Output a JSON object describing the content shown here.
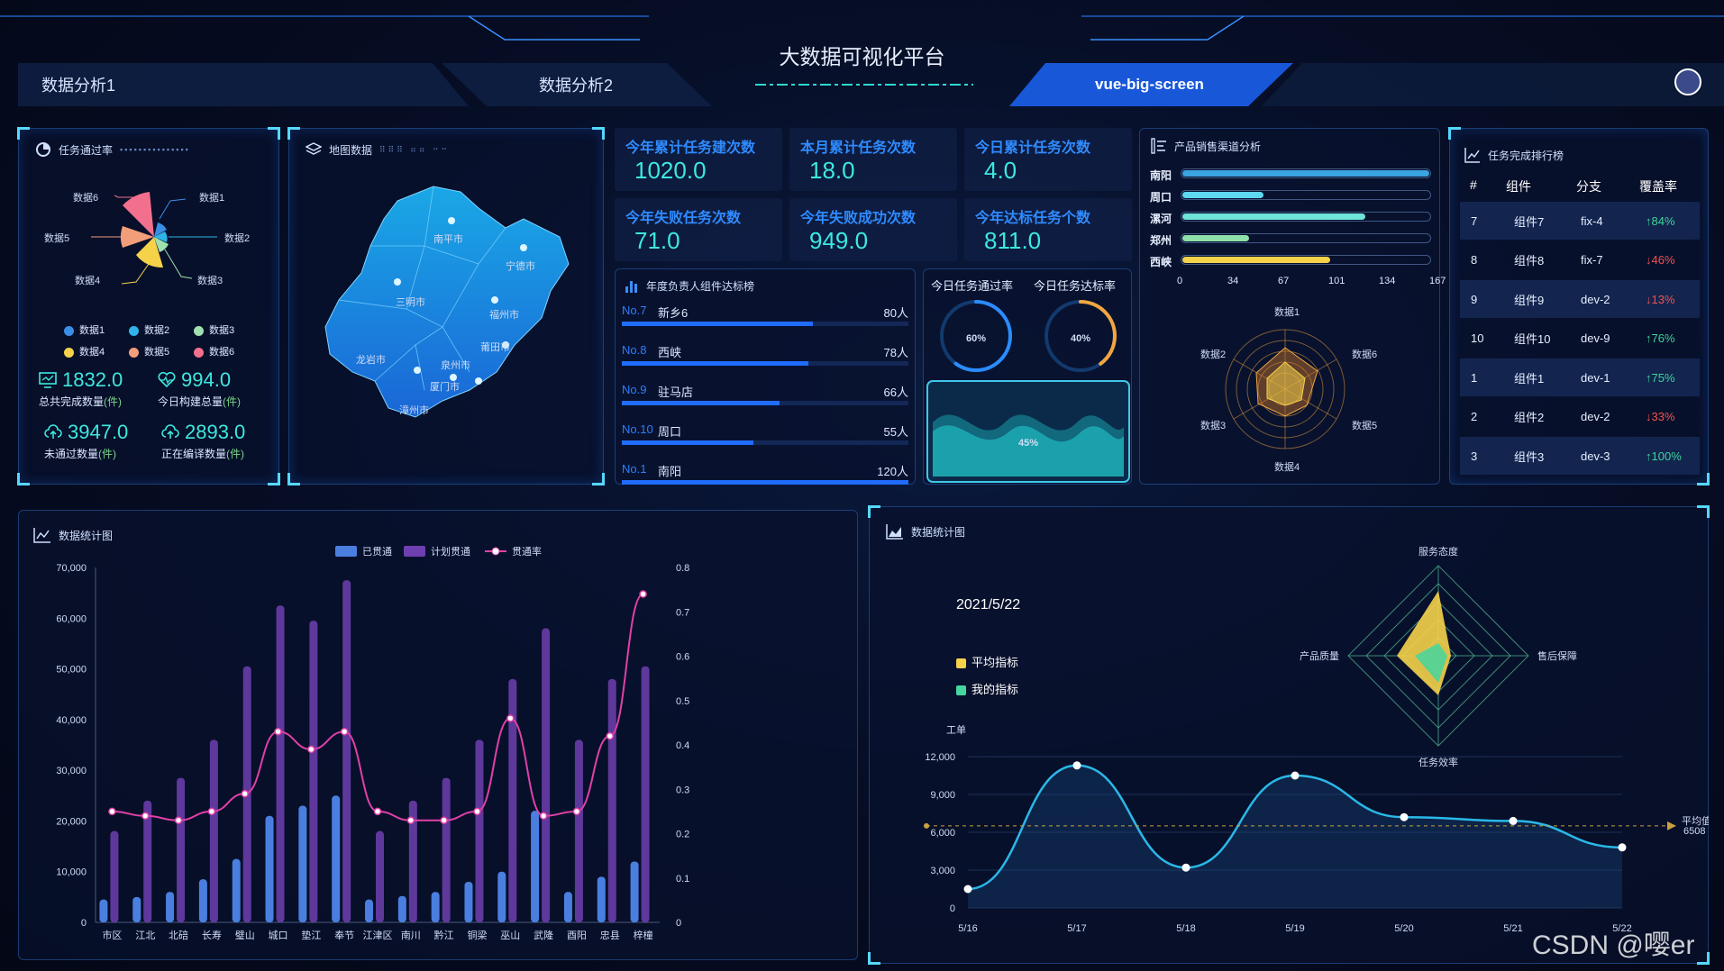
{
  "header": {
    "title": "大数据可视化平台",
    "tabs": [
      "数据分析1",
      "数据分析2",
      "vue-big-screen"
    ]
  },
  "pass_rate_panel": {
    "title": "任务通过率",
    "labels": [
      "数据1",
      "数据2",
      "数据3",
      "数据4",
      "数据5",
      "数据6"
    ],
    "legend": [
      {
        "label": "数据1",
        "color": "#3a8ee6"
      },
      {
        "label": "数据2",
        "color": "#2fb3e8"
      },
      {
        "label": "数据3",
        "color": "#9fe0b0"
      },
      {
        "label": "数据4",
        "color": "#f5d24a"
      },
      {
        "label": "数据5",
        "color": "#f29e7a"
      },
      {
        "label": "数据6",
        "color": "#f2708e"
      }
    ],
    "stats": [
      {
        "value": "1832.0",
        "label": "总共完成数量",
        "unit": "(件)"
      },
      {
        "value": "994.0",
        "label": "今日构建总量",
        "unit": "(件)"
      },
      {
        "value": "3947.0",
        "label": "未通过数量",
        "unit": "(件)"
      },
      {
        "value": "2893.0",
        "label": "正在编译数量",
        "unit": "(件)"
      }
    ]
  },
  "map_panel": {
    "title": "地图数据",
    "cities": [
      "南平市",
      "宁德市",
      "三明市",
      "福州市",
      "莆田市",
      "龙岩市",
      "泉州市",
      "厦门市",
      "漳州市"
    ]
  },
  "stats": [
    {
      "label": "今年累计任务建次数",
      "value": "1020.0"
    },
    {
      "label": "本月累计任务次数",
      "value": "18.0"
    },
    {
      "label": "今日累计任务次数",
      "value": "4.0"
    },
    {
      "label": "今年失败任务次数",
      "value": "71.0"
    },
    {
      "label": "今年失败成功次数",
      "value": "949.0"
    },
    {
      "label": "今年达标任务个数",
      "value": "811.0"
    }
  ],
  "ranking": {
    "title": "年度负责人组件达标榜",
    "items": [
      {
        "no": "No.7",
        "name": "新乡6",
        "count": "80人",
        "value": 80
      },
      {
        "no": "No.8",
        "name": "西峡",
        "count": "78人",
        "value": 78
      },
      {
        "no": "No.9",
        "name": "驻马店",
        "count": "66人",
        "value": 66
      },
      {
        "no": "No.10",
        "name": "周口",
        "count": "55人",
        "value": 55
      },
      {
        "no": "No.1",
        "name": "南阳",
        "count": "120人",
        "value": 120
      }
    ],
    "max": 120
  },
  "today": {
    "pass_title": "今日任务通过率",
    "reach_title": "今日任务达标率",
    "pass_value": "60%",
    "pass_pct": 0.6,
    "reach_value": "40%",
    "reach_pct": 0.4,
    "wave_value": "45%",
    "wave_pct": 0.45
  },
  "channels": {
    "title": "产品销售渠道分析",
    "items": [
      {
        "name": "南阳",
        "value": 167,
        "color": "#3aa3e0"
      },
      {
        "name": "周口",
        "value": 55,
        "color": "#5dd8f0"
      },
      {
        "name": "漯河",
        "value": 124,
        "color": "#6fe4d8"
      },
      {
        "name": "郑州",
        "value": 45,
        "color": "#8fe0a8"
      },
      {
        "name": "西峡",
        "value": 100,
        "color": "#f5d24a"
      }
    ],
    "axis_ticks": [
      "0",
      "34",
      "67",
      "101",
      "134",
      "167"
    ],
    "axis_max": 167,
    "radar_labels": [
      "数据1",
      "数据6",
      "数据5",
      "数据4",
      "数据3",
      "数据2"
    ]
  },
  "task_table": {
    "title": "任务完成排行榜",
    "headers": [
      "#",
      "组件",
      "分支",
      "覆盖率"
    ],
    "rows": [
      {
        "id": "7",
        "comp": "组件7",
        "branch": "fix-4",
        "cov": "↑84%",
        "up": true
      },
      {
        "id": "8",
        "comp": "组件8",
        "branch": "fix-7",
        "cov": "↓46%",
        "up": false
      },
      {
        "id": "9",
        "comp": "组件9",
        "branch": "dev-2",
        "cov": "↓13%",
        "up": false
      },
      {
        "id": "10",
        "comp": "组件10",
        "branch": "dev-9",
        "cov": "↑76%",
        "up": true
      },
      {
        "id": "1",
        "comp": "组件1",
        "branch": "dev-1",
        "cov": "↑75%",
        "up": true
      },
      {
        "id": "2",
        "comp": "组件2",
        "branch": "dev-2",
        "cov": "↓33%",
        "up": false
      },
      {
        "id": "3",
        "comp": "组件3",
        "branch": "dev-3",
        "cov": "↑100%",
        "up": true
      }
    ]
  },
  "bottom_left": {
    "title": "数据统计图"
  },
  "bottom_right": {
    "title": "数据统计图",
    "date": "2021/5/22",
    "legend": [
      "平均指标",
      "我的指标"
    ],
    "radar_labels": [
      "服务态度",
      "售后保障",
      "任务效率",
      "产品质量"
    ],
    "unit": "工单",
    "markline_label": "平均值",
    "markline_value": "6508"
  },
  "chart_data": [
    {
      "type": "bar",
      "title": "数据统计图",
      "categories": [
        "市区",
        "江北",
        "北碚",
        "长寿",
        "璧山",
        "城口",
        "垫江",
        "奉节",
        "江津区",
        "南川",
        "黔江",
        "铜梁",
        "巫山",
        "武隆",
        "酉阳",
        "忠县",
        "梓橦"
      ],
      "series": [
        {
          "name": "已贯通",
          "values": [
            4500,
            5000,
            6000,
            8500,
            12500,
            21000,
            23000,
            25000,
            4500,
            5200,
            6000,
            8000,
            10000,
            22000,
            6000,
            9000,
            12000
          ]
        },
        {
          "name": "计划贯通",
          "values": [
            18000,
            24000,
            28500,
            36000,
            50500,
            62500,
            59500,
            67500,
            18000,
            24000,
            28500,
            36000,
            48000,
            58000,
            36000,
            48000,
            50500
          ]
        },
        {
          "name": "贯通率",
          "values": [
            0.25,
            0.24,
            0.23,
            0.25,
            0.29,
            0.43,
            0.39,
            0.43,
            0.25,
            0.23,
            0.23,
            0.25,
            0.46,
            0.24,
            0.25,
            0.42,
            0.74
          ]
        }
      ],
      "ylim": [
        0,
        70000
      ],
      "y2lim": [
        0,
        0.8
      ],
      "legend": "top-center"
    },
    {
      "type": "line",
      "title": "数据统计图",
      "x": [
        "5/16",
        "5/17",
        "5/18",
        "5/19",
        "5/20",
        "5/21",
        "5/22"
      ],
      "series": [
        {
          "values": [
            1500,
            11300,
            3200,
            10500,
            7200,
            6900,
            4800
          ]
        }
      ],
      "ylabel": "工单",
      "ylim": [
        0,
        12000
      ],
      "markline": 6508
    },
    {
      "type": "radar",
      "indicators": [
        "服务态度",
        "售后保障",
        "任务效率",
        "产品质量"
      ],
      "series": [
        {
          "name": "平均指标"
        },
        {
          "name": "我的指标"
        }
      ]
    }
  ]
}
